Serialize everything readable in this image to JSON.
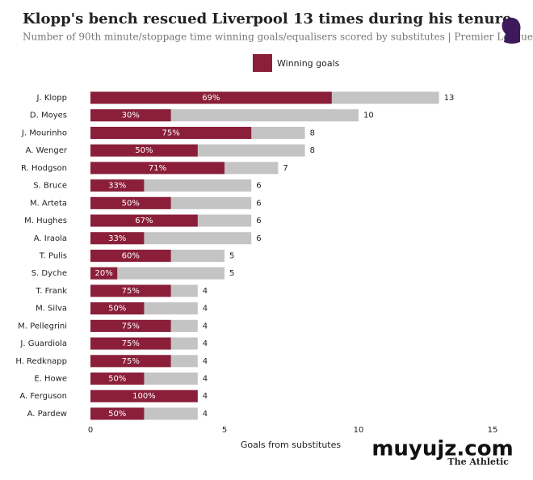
{
  "chart_data": {
    "type": "bar",
    "orientation": "horizontal",
    "title": "Klopp's bench rescued Liverpool 13 times during his tenure",
    "subtitle": "Number of 90th minute/stoppage time winning goals/equalisers scored by substitutes | Premier League",
    "x_label": "Goals from substitutes",
    "categories": [
      "J. Klopp",
      "D. Moyes",
      "J. Mourinho",
      "A. Wenger",
      "R. Hodgson",
      "S. Bruce",
      "M. Arteta",
      "M. Hughes",
      "A. Iraola",
      "T. Pulis",
      "S. Dyche",
      "T. Frank",
      "M. Silva",
      "M. Pellegrini",
      "J. Guardiola",
      "H. Redknapp",
      "E. Howe",
      "A. Ferguson",
      "A. Pardew"
    ],
    "totals": [
      13,
      10,
      8,
      8,
      7,
      6,
      6,
      6,
      6,
      5,
      5,
      4,
      4,
      4,
      4,
      4,
      4,
      4,
      4
    ],
    "totals_color": "#c4c4c4",
    "series": [
      {
        "name": "Winning goals",
        "color": "#8b1f3a",
        "values": [
          9,
          3,
          6,
          4,
          5,
          2,
          3,
          4,
          2,
          3,
          1,
          3,
          2,
          3,
          3,
          3,
          2,
          4,
          2
        ],
        "share_labels": [
          "69%",
          "30%",
          "75%",
          "50%",
          "71%",
          "33%",
          "50%",
          "67%",
          "33%",
          "60%",
          "20%",
          "75%",
          "50%",
          "75%",
          "75%",
          "75%",
          "50%",
          "100%",
          "50%"
        ]
      }
    ],
    "xlim": [
      0,
      15
    ],
    "xticks": [
      0,
      5,
      10,
      15
    ],
    "grid": false,
    "source": "The Athletic",
    "watermark": "muyujz.com"
  }
}
